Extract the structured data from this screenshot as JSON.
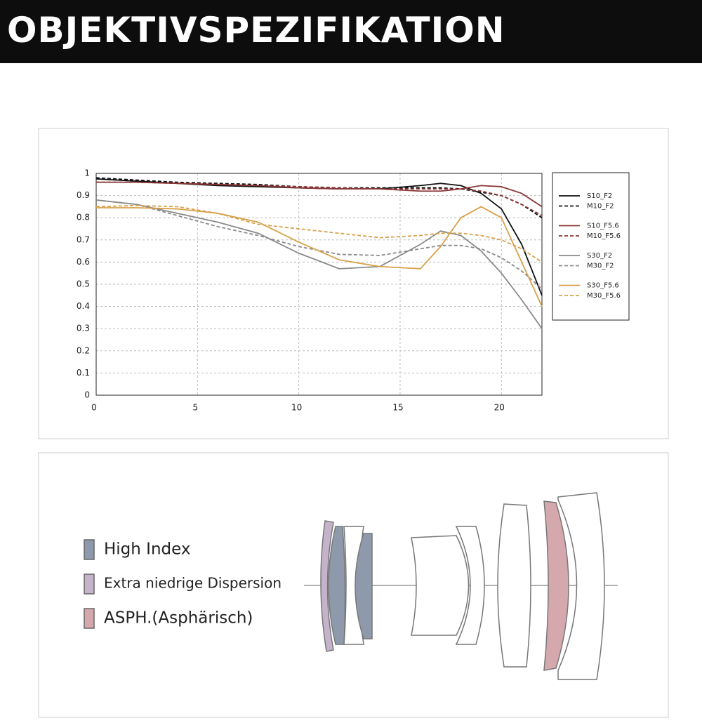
{
  "header": {
    "title": "OBJEKTIVSPEZIFIKATION"
  },
  "chart_data": {
    "type": "line",
    "x": [
      0,
      2,
      4,
      6,
      8,
      10,
      12,
      14,
      16,
      17,
      18,
      19,
      20,
      21,
      22
    ],
    "xlim": [
      0,
      22
    ],
    "xticks": [
      0,
      5,
      10,
      15,
      20
    ],
    "ylim": [
      0,
      1
    ],
    "yticks": [
      0,
      0.1,
      0.2,
      0.3,
      0.4,
      0.5,
      0.6,
      0.7,
      0.8,
      0.9,
      1
    ],
    "grid": true,
    "legend": "right",
    "series": [
      {
        "name": "S10_F2",
        "color": "#111111",
        "dash": false,
        "values": [
          0.975,
          0.965,
          0.955,
          0.945,
          0.94,
          0.935,
          0.93,
          0.93,
          0.945,
          0.955,
          0.945,
          0.91,
          0.84,
          0.68,
          0.45
        ]
      },
      {
        "name": "M10_F2",
        "color": "#111111",
        "dash": true,
        "values": [
          0.98,
          0.97,
          0.96,
          0.955,
          0.95,
          0.94,
          0.935,
          0.935,
          0.935,
          0.935,
          0.93,
          0.915,
          0.9,
          0.86,
          0.8
        ]
      },
      {
        "name": "S10_F5.6",
        "color": "#8b3636",
        "dash": false,
        "values": [
          0.96,
          0.96,
          0.955,
          0.95,
          0.945,
          0.935,
          0.93,
          0.93,
          0.92,
          0.92,
          0.93,
          0.945,
          0.94,
          0.91,
          0.85
        ]
      },
      {
        "name": "M10_F5.6",
        "color": "#8b3636",
        "dash": true,
        "values": [
          0.96,
          0.96,
          0.955,
          0.95,
          0.945,
          0.94,
          0.935,
          0.93,
          0.93,
          0.93,
          0.93,
          0.92,
          0.9,
          0.86,
          0.81
        ]
      },
      {
        "name": "S30_F2",
        "color": "#8a8a8a",
        "dash": false,
        "values": [
          0.88,
          0.86,
          0.82,
          0.78,
          0.73,
          0.64,
          0.57,
          0.58,
          0.68,
          0.74,
          0.72,
          0.65,
          0.55,
          0.43,
          0.3
        ]
      },
      {
        "name": "M30_F2",
        "color": "#8a8a8a",
        "dash": true,
        "values": [
          0.88,
          0.86,
          0.81,
          0.76,
          0.72,
          0.67,
          0.635,
          0.63,
          0.66,
          0.675,
          0.675,
          0.66,
          0.62,
          0.56,
          0.48
        ]
      },
      {
        "name": "S30_F5.6",
        "color": "#d9a04a",
        "dash": false,
        "values": [
          0.845,
          0.845,
          0.84,
          0.82,
          0.78,
          0.69,
          0.61,
          0.58,
          0.57,
          0.67,
          0.8,
          0.85,
          0.8,
          0.6,
          0.4
        ]
      },
      {
        "name": "M30_F5.6",
        "color": "#d9a04a",
        "dash": true,
        "values": [
          0.85,
          0.855,
          0.85,
          0.82,
          0.77,
          0.75,
          0.73,
          0.71,
          0.72,
          0.73,
          0.73,
          0.72,
          0.7,
          0.66,
          0.6
        ]
      }
    ]
  },
  "lens_legend": {
    "items": [
      {
        "label": "High Index",
        "color": "#8e9aab"
      },
      {
        "label": "Extra niedrige Dispersion",
        "color": "#c5b3cb"
      },
      {
        "label": "ASPH.(Asphärisch)",
        "color": "#d5a8ad"
      }
    ]
  }
}
